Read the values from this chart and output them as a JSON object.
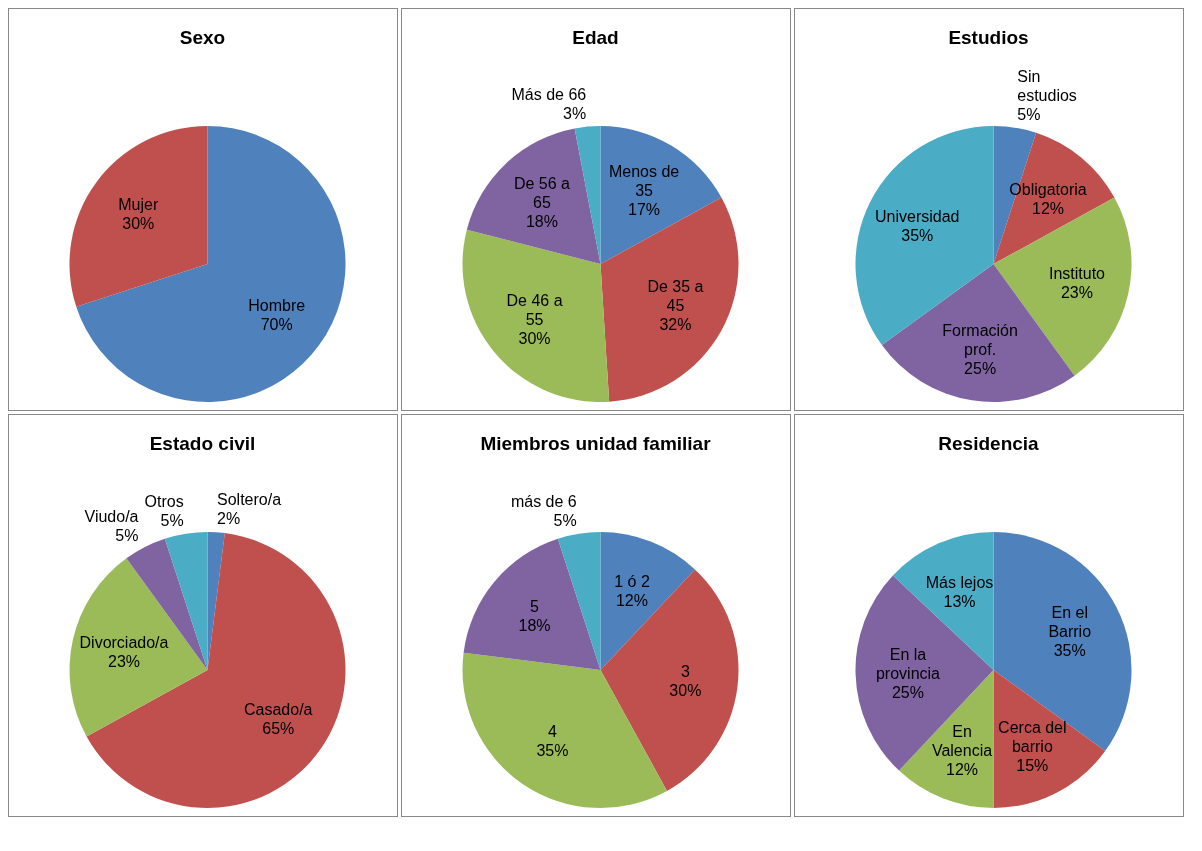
{
  "chart_data": [
    {
      "type": "pie",
      "title": "Sexo",
      "categories": [
        "Hombre",
        "Mujer"
      ],
      "values": [
        70,
        30
      ],
      "value_labels": [
        "70%",
        "30%"
      ],
      "colors": [
        "#4f81bd",
        "#c0504d"
      ]
    },
    {
      "type": "pie",
      "title": "Edad",
      "categories": [
        "Menos de 35",
        "De 35 a 45",
        "De 46 a 55",
        "De 56 a 65",
        "Más de 66"
      ],
      "values": [
        17,
        32,
        30,
        18,
        3
      ],
      "value_labels": [
        "17%",
        "32%",
        "30%",
        "18%",
        "3%"
      ],
      "colors": [
        "#4f81bd",
        "#c0504d",
        "#9bbb59",
        "#8064a2",
        "#4bacc6"
      ]
    },
    {
      "type": "pie",
      "title": "Estudios",
      "categories": [
        "Sin estudios",
        "Obligatoria",
        "Instituto",
        "Formación prof.",
        "Universidad"
      ],
      "values": [
        5,
        12,
        23,
        25,
        35
      ],
      "value_labels": [
        "5%",
        "12%",
        "23%",
        "25%",
        "35%"
      ],
      "colors": [
        "#4f81bd",
        "#c0504d",
        "#9bbb59",
        "#8064a2",
        "#4bacc6"
      ]
    },
    {
      "type": "pie",
      "title": "Estado civil",
      "categories": [
        "Soltero/a",
        "Casado/a",
        "Divorciado/a",
        "Viudo/a",
        "Otros"
      ],
      "values": [
        2,
        65,
        23,
        5,
        5
      ],
      "value_labels": [
        "2%",
        "65%",
        "23%",
        "5%",
        "5%"
      ],
      "colors": [
        "#4f81bd",
        "#c0504d",
        "#9bbb59",
        "#8064a2",
        "#4bacc6"
      ]
    },
    {
      "type": "pie",
      "title": "Miembros unidad familiar",
      "categories": [
        "1 ó 2",
        "3",
        "4",
        "5",
        "más de 6"
      ],
      "values": [
        12,
        30,
        35,
        18,
        5
      ],
      "value_labels": [
        "12%",
        "30%",
        "35%",
        "18%",
        "5%"
      ],
      "colors": [
        "#4f81bd",
        "#c0504d",
        "#9bbb59",
        "#8064a2",
        "#4bacc6"
      ]
    },
    {
      "type": "pie",
      "title": "Residencia",
      "categories": [
        "En el Barrio",
        "Cerca del barrio",
        "En Valencia",
        "En la provincia",
        "Más lejos"
      ],
      "values": [
        35,
        15,
        12,
        25,
        13
      ],
      "value_labels": [
        "35%",
        "15%",
        "12%",
        "25%",
        "13%"
      ],
      "colors": [
        "#4f81bd",
        "#c0504d",
        "#9bbb59",
        "#8064a2",
        "#4bacc6"
      ]
    }
  ]
}
